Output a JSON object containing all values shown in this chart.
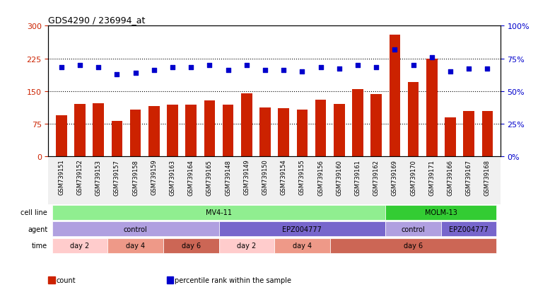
{
  "title": "GDS4290 / 236994_at",
  "samples": [
    "GSM739151",
    "GSM739152",
    "GSM739153",
    "GSM739157",
    "GSM739158",
    "GSM739159",
    "GSM739163",
    "GSM739164",
    "GSM739165",
    "GSM739148",
    "GSM739149",
    "GSM739150",
    "GSM739154",
    "GSM739155",
    "GSM739156",
    "GSM739160",
    "GSM739161",
    "GSM739162",
    "GSM739169",
    "GSM739170",
    "GSM739171",
    "GSM739166",
    "GSM739167",
    "GSM739168"
  ],
  "counts": [
    95,
    120,
    122,
    82,
    108,
    115,
    118,
    118,
    128,
    118,
    145,
    112,
    110,
    108,
    130,
    120,
    155,
    143,
    280,
    170,
    225,
    90,
    105,
    105
  ],
  "percentile_ranks": [
    68,
    70,
    68,
    63,
    64,
    66,
    68,
    68,
    70,
    66,
    70,
    66,
    66,
    65,
    68,
    67,
    70,
    68,
    82,
    70,
    76,
    65,
    67,
    67
  ],
  "bar_color": "#cc2200",
  "dot_color": "#0000cc",
  "ylim_left": [
    0,
    300
  ],
  "ylim_right": [
    0,
    100
  ],
  "yticks_left": [
    0,
    75,
    150,
    225,
    300
  ],
  "ytick_labels_left": [
    "0",
    "75",
    "150",
    "225",
    "300"
  ],
  "yticks_right": [
    0,
    25,
    50,
    75,
    100
  ],
  "ytick_labels_right": [
    "0%",
    "25%",
    "50%",
    "75%",
    "100%"
  ],
  "hlines": [
    75,
    150,
    225
  ],
  "cell_line_data": [
    {
      "label": "MV4-11",
      "start": 0,
      "end": 18,
      "color": "#90ee90"
    },
    {
      "label": "MOLM-13",
      "start": 18,
      "end": 24,
      "color": "#33cc33"
    }
  ],
  "agent_data": [
    {
      "label": "control",
      "start": 0,
      "end": 9,
      "color": "#b0a0e0"
    },
    {
      "label": "EPZ004777",
      "start": 9,
      "end": 18,
      "color": "#7766cc"
    },
    {
      "label": "control",
      "start": 18,
      "end": 21,
      "color": "#b0a0e0"
    },
    {
      "label": "EPZ004777",
      "start": 21,
      "end": 24,
      "color": "#7766cc"
    }
  ],
  "time_data": [
    {
      "label": "day 2",
      "start": 0,
      "end": 3,
      "color": "#ffcccc"
    },
    {
      "label": "day 4",
      "start": 3,
      "end": 6,
      "color": "#ee9988"
    },
    {
      "label": "day 6",
      "start": 6,
      "end": 9,
      "color": "#cc6655"
    },
    {
      "label": "day 2",
      "start": 9,
      "end": 12,
      "color": "#ffcccc"
    },
    {
      "label": "day 4",
      "start": 12,
      "end": 15,
      "color": "#ee9988"
    },
    {
      "label": "day 6",
      "start": 15,
      "end": 24,
      "color": "#cc6655"
    }
  ],
  "legend_items": [
    {
      "label": "count",
      "color": "#cc2200"
    },
    {
      "label": "percentile rank within the sample",
      "color": "#0000cc"
    }
  ],
  "row_labels": [
    "cell line",
    "agent",
    "time"
  ],
  "bg_color": "#f0f0f0",
  "plot_bg": "#ffffff"
}
